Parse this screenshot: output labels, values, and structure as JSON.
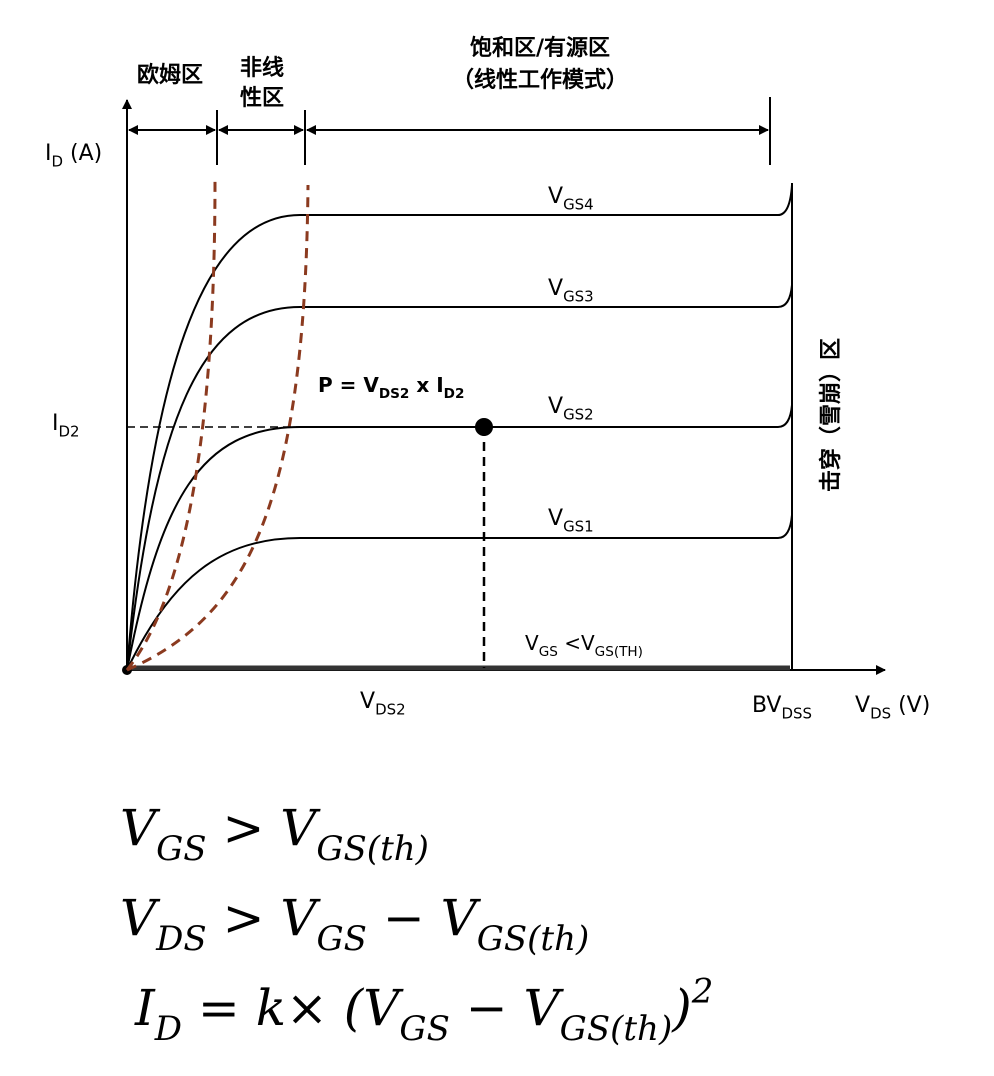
{
  "regions": {
    "ohmic": "欧姆区",
    "nonlinear": [
      "非线",
      "性区"
    ],
    "saturation": [
      "饱和区/有源区",
      "（线性工作模式）"
    ]
  },
  "breakdown": "击穿（雪崩）区",
  "y_axis_label": [
    {
      "text": "I",
      "sub": "D"
    },
    {
      "text": " (A)"
    }
  ],
  "y_mark_label": [
    {
      "text": "I",
      "sub": "D2"
    }
  ],
  "curve_labels": [
    [
      {
        "text": "V",
        "sub": "GS4"
      }
    ],
    [
      {
        "text": "V",
        "sub": "GS3"
      }
    ],
    [
      {
        "text": "V",
        "sub": "GS2"
      }
    ],
    [
      {
        "text": "V",
        "sub": "GS1"
      }
    ],
    [
      {
        "text": "V",
        "sub": "GS"
      },
      {
        "text": " <V",
        "sub": "GS(TH)"
      }
    ]
  ],
  "power_label": [
    {
      "text": "P = V",
      "sub": "DS2"
    },
    {
      "text": " x I",
      "sub": "D2"
    }
  ],
  "x_labels": {
    "vds2": [
      {
        "text": "V",
        "sub": "DS2"
      }
    ],
    "bvdss": [
      {
        "text": "BV",
        "sub": "DSS"
      }
    ],
    "axis": [
      {
        "text": "V",
        "sub": "DS"
      },
      {
        "text": " (V)"
      }
    ]
  },
  "equations": [
    [
      {
        "text": "V",
        "sub": "GS"
      },
      {
        "text": " > V",
        "sub": "GS(th)"
      }
    ],
    [
      {
        "text": "V",
        "sub": "DS"
      },
      {
        "text": " > V",
        "sub": "GS"
      },
      {
        "text": " − V",
        "sub": "GS(th)"
      }
    ],
    [
      {
        "text": "I",
        "sub": "D"
      },
      {
        "text": " = k× (V",
        "sub": "GS"
      },
      {
        "text": " − V",
        "sub": "GS(th)"
      },
      {
        "text": ")",
        "sup": "2"
      }
    ]
  ]
}
